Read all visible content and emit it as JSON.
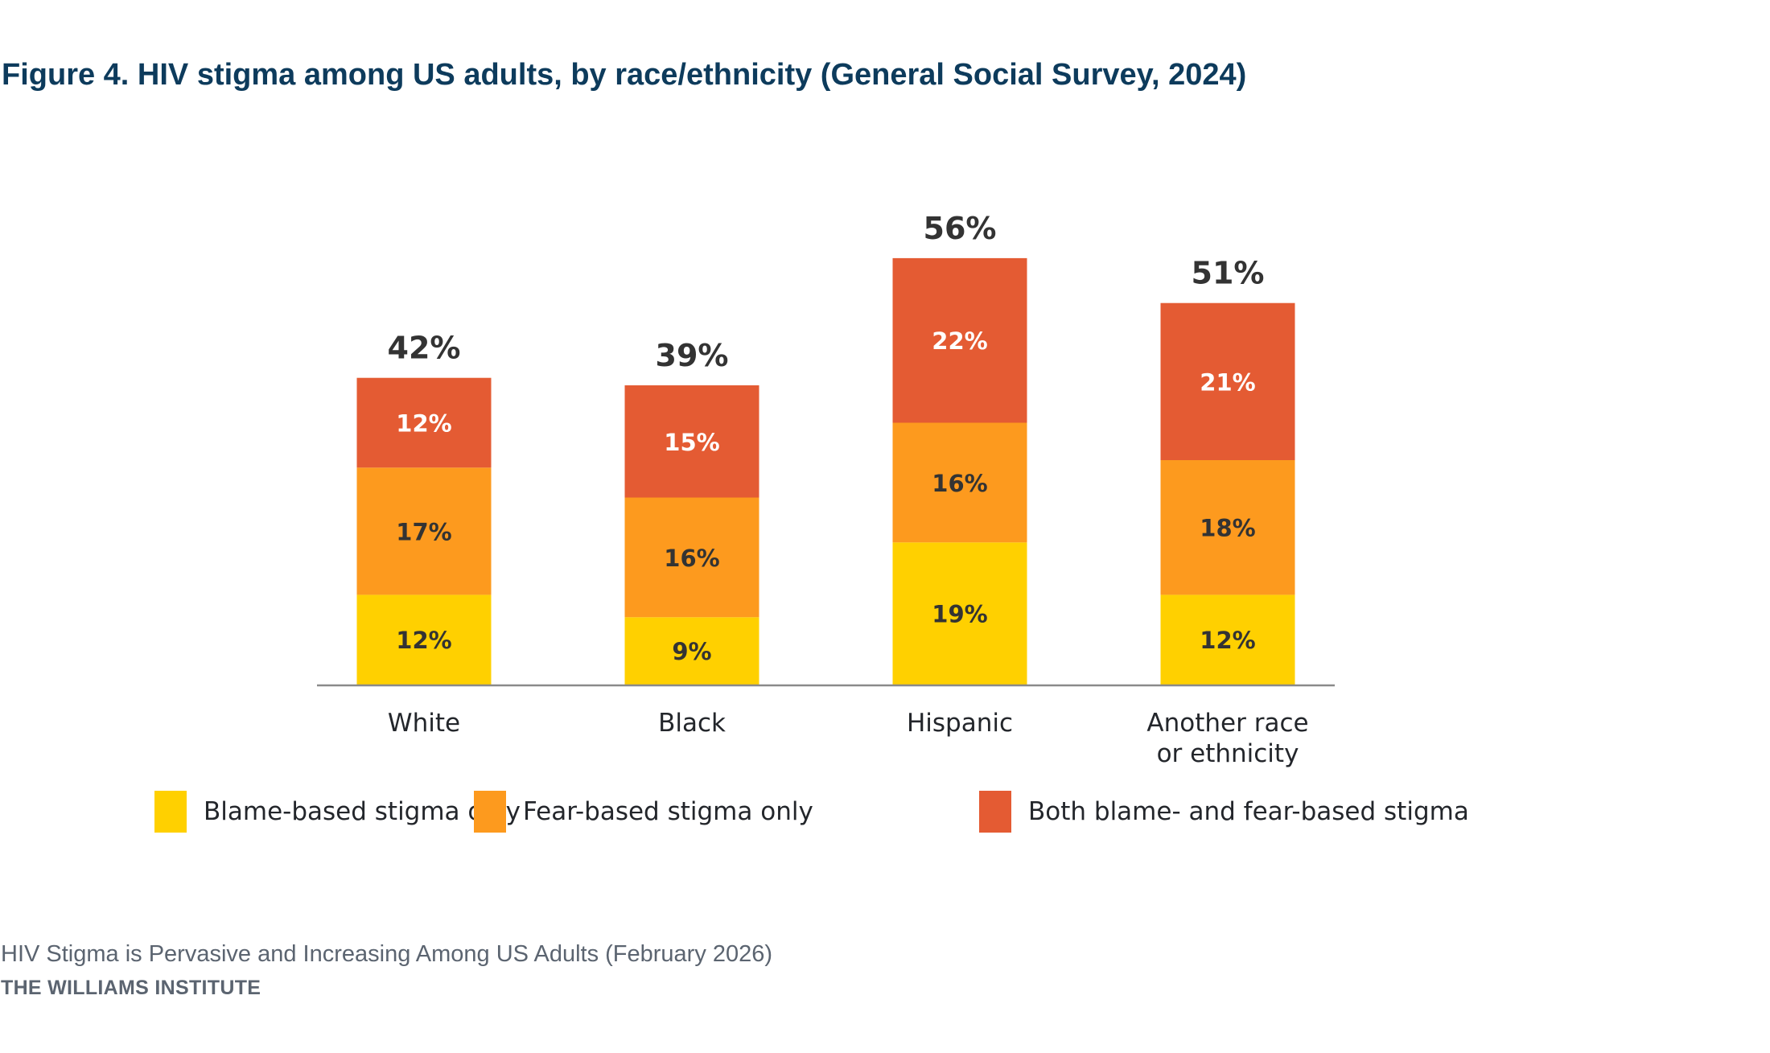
{
  "header": {
    "title": "Figure 4. HIV stigma among US adults, by race/ethnicity (General Social Survey, 2024)"
  },
  "colors": {
    "title": "#0d3b5c",
    "blame": "#FFD000",
    "fear": "#FD9A1E",
    "both": "#E45B33",
    "axis": "#8a8a8a",
    "label_dark": "#333333",
    "label_light": "#ffffff"
  },
  "chart_data": {
    "type": "bar",
    "stacked": true,
    "title": "Figure 4. HIV stigma among US adults, by race/ethnicity (General Social Survey, 2024)",
    "xlabel": "",
    "ylabel": "",
    "ylim": [
      0,
      57
    ],
    "grid": false,
    "legend_position": "bottom",
    "categories": [
      [
        "White"
      ],
      [
        "Black"
      ],
      [
        "Hispanic"
      ],
      [
        "Another race",
        "or ethnicity"
      ]
    ],
    "series": [
      {
        "name": "Blame-based stigma only",
        "key": "blame",
        "values": [
          12,
          9,
          19,
          12
        ],
        "labels": [
          "12%",
          "9%",
          "19%",
          "12%"
        ]
      },
      {
        "name": "Fear-based stigma only",
        "key": "fear",
        "values": [
          17,
          16,
          16,
          18
        ],
        "labels": [
          "17%",
          "16%",
          "16%",
          "18%"
        ]
      },
      {
        "name": "Both blame- and fear-based stigma",
        "key": "both",
        "values": [
          12,
          15,
          22,
          21
        ],
        "labels": [
          "12%",
          "15%",
          "22%",
          "21%"
        ]
      }
    ],
    "totals": [
      42,
      39,
      56,
      51
    ],
    "total_labels": [
      "42%",
      "39%",
      "56%",
      "51%"
    ]
  },
  "legend": {
    "items": [
      {
        "label": "Blame-based stigma only",
        "key": "blame"
      },
      {
        "label": "Fear-based stigma only",
        "key": "fear"
      },
      {
        "label": "Both blame- and fear-based stigma",
        "key": "both"
      }
    ]
  },
  "footer": {
    "report_title": "HIV Stigma is Pervasive and Increasing Among US Adults (February 2026)",
    "organization": "THE WILLIAMS INSTITUTE"
  }
}
